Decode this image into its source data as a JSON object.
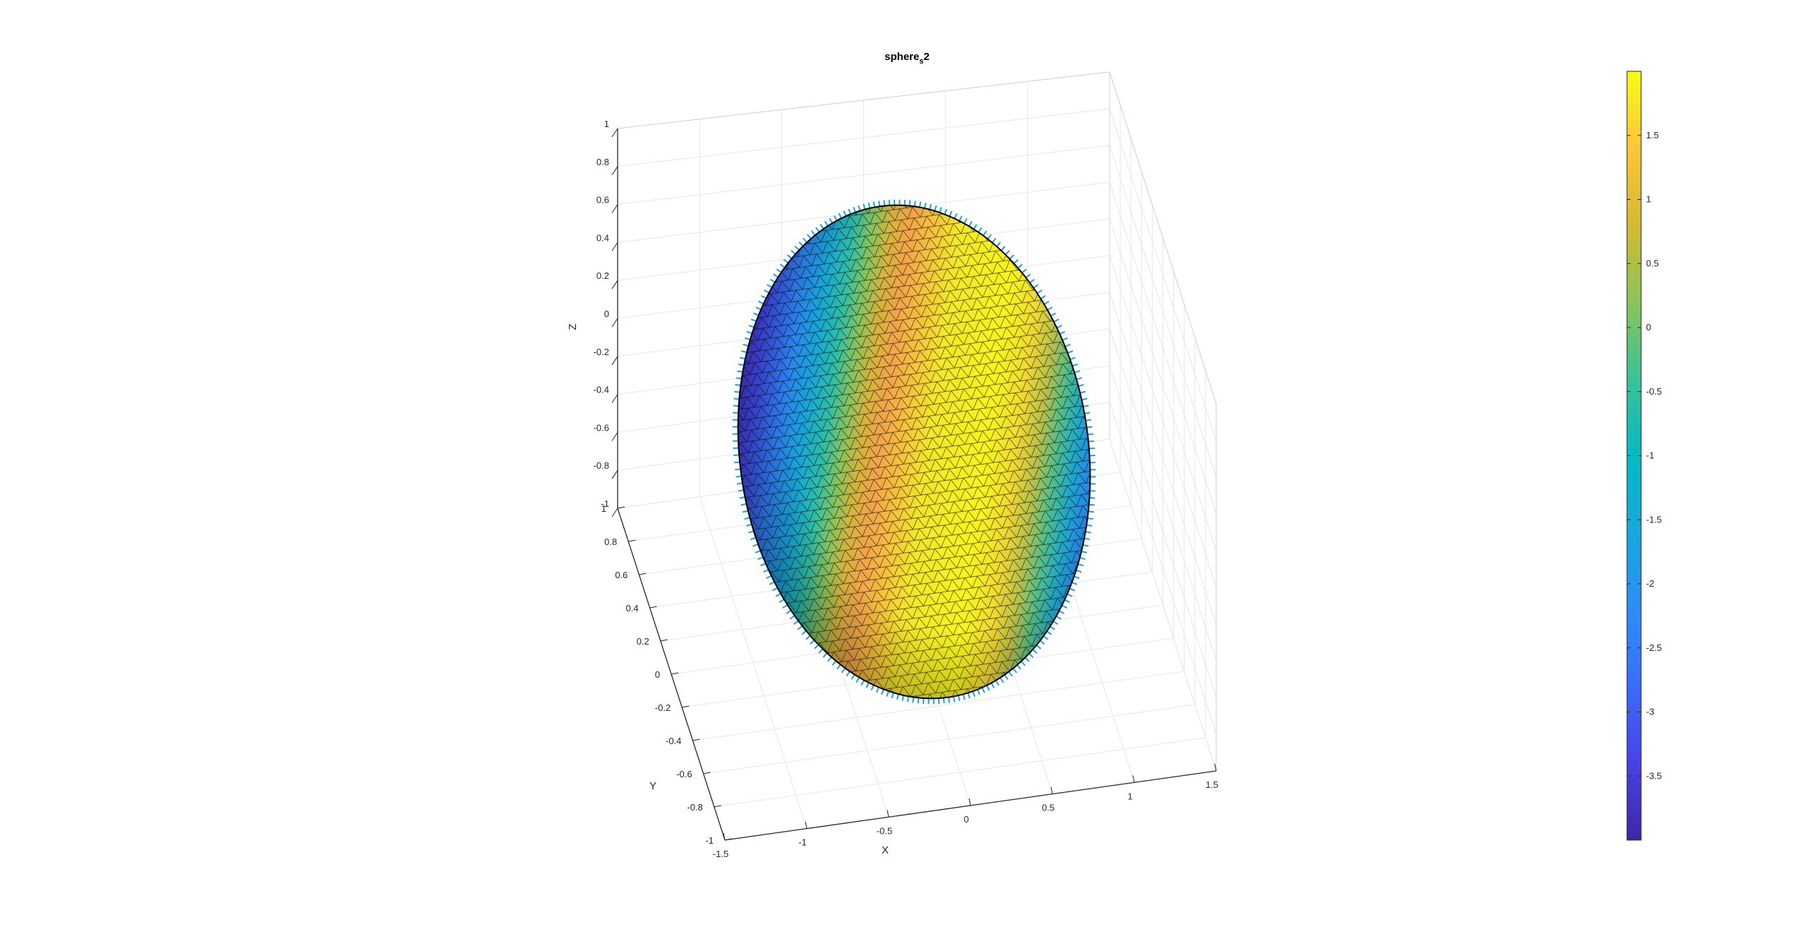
{
  "chart_data": {
    "type": "surface3d",
    "title_main": "sphere",
    "title_sub": "s",
    "title_suffix": "2",
    "xlabel": "X",
    "ylabel": "Y",
    "zlabel": "Z",
    "xlim": [
      -1.5,
      1.5
    ],
    "ylim": [
      -1,
      1
    ],
    "zlim": [
      -1,
      1
    ],
    "x_ticks": [
      "-1.5",
      "-1",
      "-0.5",
      "0",
      "0.5",
      "1",
      "1.5"
    ],
    "y_ticks": [
      "-1",
      "-0.8",
      "-0.6",
      "-0.4",
      "-0.2",
      "0",
      "0.2",
      "0.4",
      "0.6",
      "0.8",
      "1"
    ],
    "z_ticks": [
      "-1",
      "-0.8",
      "-0.6",
      "-0.4",
      "-0.2",
      "0",
      "0.2",
      "0.4",
      "0.6",
      "0.8",
      "1"
    ],
    "grid": true,
    "surface": "triangulated unit sphere with surface normals (quiver)",
    "colormap": "parula",
    "color_range": [
      -4,
      2
    ],
    "colorbar": {
      "location": "right",
      "ticks": [
        "-3.5",
        "-3",
        "-2.5",
        "-2",
        "-1.5",
        "-1",
        "-0.5",
        "0",
        "0.5",
        "1",
        "1.5"
      ],
      "tick_values": [
        -3.5,
        -3,
        -2.5,
        -2,
        -1.5,
        -1,
        -0.5,
        0,
        0.5,
        1,
        1.5
      ]
    },
    "colors": {
      "low": "#3e26a8",
      "mid": "#10b4c4",
      "high": "#f9fb15",
      "edge": "#000000",
      "normals": "#1f9fe0",
      "grid": "#e6e6e6"
    }
  }
}
